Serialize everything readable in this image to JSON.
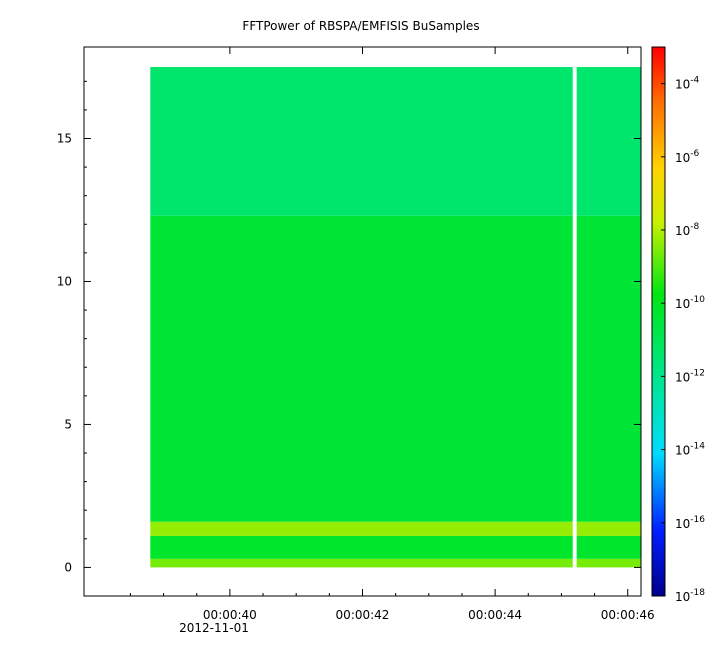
{
  "chart_data": {
    "type": "heatmap",
    "title": "FFTPower of RBSPA/EMFISIS  BuSamples",
    "xlabel": "",
    "ylabel": "",
    "x_ticks": [
      "00:00:40",
      "00:00:42",
      "00:00:44",
      "00:00:46"
    ],
    "x_date_label": "2012-11-01",
    "x_range_seconds": [
      37.8,
      46.2
    ],
    "data_x_range_seconds": [
      38.8,
      46.2
    ],
    "gap_x_seconds": 45.2,
    "y_ticks": [
      0,
      5,
      10,
      15
    ],
    "ylim": [
      -1.0,
      18.2
    ],
    "data_y_range": [
      0.0,
      17.5
    ],
    "colorbar": {
      "scale": "log",
      "range": [
        1e-18,
        0.001
      ],
      "tick_labels": [
        {
          "base": "10",
          "exp": "-4",
          "value": 0.0001
        },
        {
          "base": "10",
          "exp": "-6",
          "value": 1e-06
        },
        {
          "base": "10",
          "exp": "-8",
          "value": 1e-08
        },
        {
          "base": "10",
          "exp": "-10",
          "value": 1e-10
        },
        {
          "base": "10",
          "exp": "-12",
          "value": 1e-12
        },
        {
          "base": "10",
          "exp": "-14",
          "value": 1e-14
        },
        {
          "base": "10",
          "exp": "-16",
          "value": 1e-16
        },
        {
          "base": "10",
          "exp": "-18",
          "value": 1e-18
        }
      ]
    },
    "bands": [
      {
        "y_range": [
          0.0,
          0.3
        ],
        "log_power": -8.6
      },
      {
        "y_range": [
          0.3,
          1.1
        ],
        "log_power": -10.2
      },
      {
        "y_range": [
          1.1,
          1.6
        ],
        "log_power": -8.3
      },
      {
        "y_range": [
          1.6,
          12.3
        ],
        "log_power": -10.4
      },
      {
        "y_range": [
          12.3,
          17.5
        ],
        "log_power": -11.4
      }
    ]
  }
}
